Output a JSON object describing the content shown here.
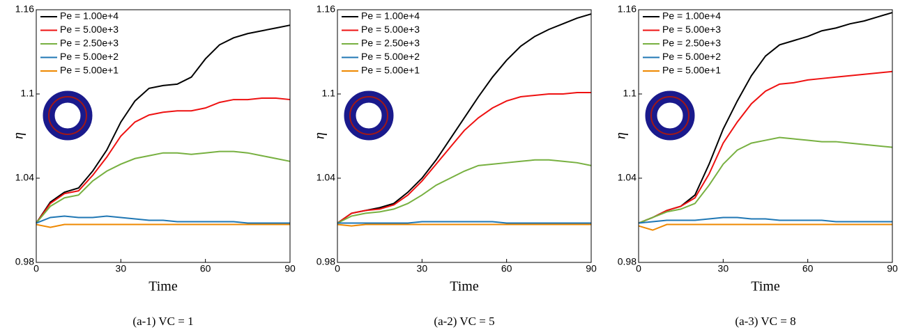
{
  "chart_data": [
    {
      "type": "line",
      "caption": "(a-1) VC = 1",
      "xlabel": "Time",
      "ylabel": "η",
      "x": [
        0,
        5,
        10,
        15,
        20,
        25,
        30,
        35,
        40,
        45,
        50,
        55,
        60,
        65,
        70,
        75,
        80,
        85,
        90
      ],
      "xlim": [
        0,
        90
      ],
      "ylim": [
        0.98,
        1.16
      ],
      "xticks": [
        0,
        30,
        60,
        90
      ],
      "yticks": [
        0.98,
        1.04,
        1.1,
        1.16
      ],
      "legend": "upper left",
      "series": [
        {
          "name": "Pe = 1.00e+4",
          "color": "#000000",
          "values": [
            1.008,
            1.023,
            1.03,
            1.033,
            1.045,
            1.06,
            1.08,
            1.095,
            1.104,
            1.106,
            1.107,
            1.112,
            1.125,
            1.135,
            1.14,
            1.143,
            1.145,
            1.147,
            1.149
          ]
        },
        {
          "name": "Pe = 5.00e+3",
          "color": "#ee1111",
          "values": [
            1.008,
            1.022,
            1.029,
            1.031,
            1.042,
            1.055,
            1.07,
            1.08,
            1.085,
            1.087,
            1.088,
            1.088,
            1.09,
            1.094,
            1.096,
            1.096,
            1.097,
            1.097,
            1.096
          ]
        },
        {
          "name": "Pe = 2.50e+3",
          "color": "#77b040",
          "values": [
            1.008,
            1.02,
            1.026,
            1.028,
            1.038,
            1.045,
            1.05,
            1.054,
            1.056,
            1.058,
            1.058,
            1.057,
            1.058,
            1.059,
            1.059,
            1.058,
            1.056,
            1.054,
            1.052
          ]
        },
        {
          "name": "Pe = 5.00e+2",
          "color": "#1f77b4",
          "values": [
            1.008,
            1.012,
            1.013,
            1.012,
            1.012,
            1.013,
            1.012,
            1.011,
            1.01,
            1.01,
            1.009,
            1.009,
            1.009,
            1.009,
            1.009,
            1.008,
            1.008,
            1.008,
            1.008
          ]
        },
        {
          "name": "Pe = 5.00e+1",
          "color": "#ee8800",
          "values": [
            1.007,
            1.005,
            1.007,
            1.007,
            1.007,
            1.007,
            1.007,
            1.007,
            1.007,
            1.007,
            1.007,
            1.007,
            1.007,
            1.007,
            1.007,
            1.007,
            1.007,
            1.007,
            1.007
          ]
        }
      ]
    },
    {
      "type": "line",
      "caption": "(a-2) VC = 5",
      "xlabel": "Time",
      "ylabel": "η",
      "x": [
        0,
        5,
        10,
        15,
        20,
        25,
        30,
        35,
        40,
        45,
        50,
        55,
        60,
        65,
        70,
        75,
        80,
        85,
        90
      ],
      "xlim": [
        0,
        90
      ],
      "ylim": [
        0.98,
        1.16
      ],
      "xticks": [
        0,
        30,
        60,
        90
      ],
      "yticks": [
        0.98,
        1.04,
        1.1,
        1.16
      ],
      "legend": "upper left",
      "series": [
        {
          "name": "Pe = 1.00e+4",
          "color": "#000000",
          "values": [
            1.008,
            1.015,
            1.017,
            1.019,
            1.022,
            1.03,
            1.04,
            1.053,
            1.068,
            1.083,
            1.098,
            1.112,
            1.124,
            1.134,
            1.141,
            1.146,
            1.15,
            1.154,
            1.157
          ]
        },
        {
          "name": "Pe = 5.00e+3",
          "color": "#ee1111",
          "values": [
            1.008,
            1.015,
            1.017,
            1.018,
            1.021,
            1.028,
            1.038,
            1.05,
            1.062,
            1.074,
            1.083,
            1.09,
            1.095,
            1.098,
            1.099,
            1.1,
            1.1,
            1.101,
            1.101
          ]
        },
        {
          "name": "Pe = 2.50e+3",
          "color": "#77b040",
          "values": [
            1.008,
            1.013,
            1.015,
            1.016,
            1.018,
            1.022,
            1.028,
            1.035,
            1.04,
            1.045,
            1.049,
            1.05,
            1.051,
            1.052,
            1.053,
            1.053,
            1.052,
            1.051,
            1.049
          ]
        },
        {
          "name": "Pe = 5.00e+2",
          "color": "#1f77b4",
          "values": [
            1.008,
            1.008,
            1.008,
            1.008,
            1.008,
            1.008,
            1.009,
            1.009,
            1.009,
            1.009,
            1.009,
            1.009,
            1.008,
            1.008,
            1.008,
            1.008,
            1.008,
            1.008,
            1.008
          ]
        },
        {
          "name": "Pe = 5.00e+1",
          "color": "#ee8800",
          "values": [
            1.007,
            1.006,
            1.007,
            1.007,
            1.007,
            1.007,
            1.007,
            1.007,
            1.007,
            1.007,
            1.007,
            1.007,
            1.007,
            1.007,
            1.007,
            1.007,
            1.007,
            1.007,
            1.007
          ]
        }
      ]
    },
    {
      "type": "line",
      "caption": "(a-3) VC = 8",
      "xlabel": "Time",
      "ylabel": "η",
      "x": [
        0,
        5,
        10,
        15,
        20,
        25,
        30,
        35,
        40,
        45,
        50,
        55,
        60,
        65,
        70,
        75,
        80,
        85,
        90
      ],
      "xlim": [
        0,
        90
      ],
      "ylim": [
        0.98,
        1.16
      ],
      "xticks": [
        0,
        30,
        60,
        90
      ],
      "yticks": [
        0.98,
        1.04,
        1.1,
        1.16
      ],
      "legend": "upper left",
      "series": [
        {
          "name": "Pe = 1.00e+4",
          "color": "#000000",
          "values": [
            1.008,
            1.012,
            1.017,
            1.02,
            1.028,
            1.05,
            1.075,
            1.095,
            1.113,
            1.127,
            1.135,
            1.138,
            1.141,
            1.145,
            1.147,
            1.15,
            1.152,
            1.155,
            1.158
          ]
        },
        {
          "name": "Pe = 5.00e+3",
          "color": "#ee1111",
          "values": [
            1.008,
            1.012,
            1.017,
            1.02,
            1.026,
            1.043,
            1.065,
            1.08,
            1.093,
            1.102,
            1.107,
            1.108,
            1.11,
            1.111,
            1.112,
            1.113,
            1.114,
            1.115,
            1.116
          ]
        },
        {
          "name": "Pe = 2.50e+3",
          "color": "#77b040",
          "values": [
            1.008,
            1.012,
            1.016,
            1.018,
            1.022,
            1.035,
            1.05,
            1.06,
            1.065,
            1.067,
            1.069,
            1.068,
            1.067,
            1.066,
            1.066,
            1.065,
            1.064,
            1.063,
            1.062
          ]
        },
        {
          "name": "Pe = 5.00e+2",
          "color": "#1f77b4",
          "values": [
            1.008,
            1.009,
            1.01,
            1.01,
            1.01,
            1.011,
            1.012,
            1.012,
            1.011,
            1.011,
            1.01,
            1.01,
            1.01,
            1.01,
            1.009,
            1.009,
            1.009,
            1.009,
            1.009
          ]
        },
        {
          "name": "Pe = 5.00e+1",
          "color": "#ee8800",
          "values": [
            1.006,
            1.003,
            1.007,
            1.007,
            1.007,
            1.007,
            1.007,
            1.007,
            1.007,
            1.007,
            1.007,
            1.007,
            1.007,
            1.007,
            1.007,
            1.007,
            1.007,
            1.007,
            1.007
          ]
        }
      ]
    }
  ]
}
